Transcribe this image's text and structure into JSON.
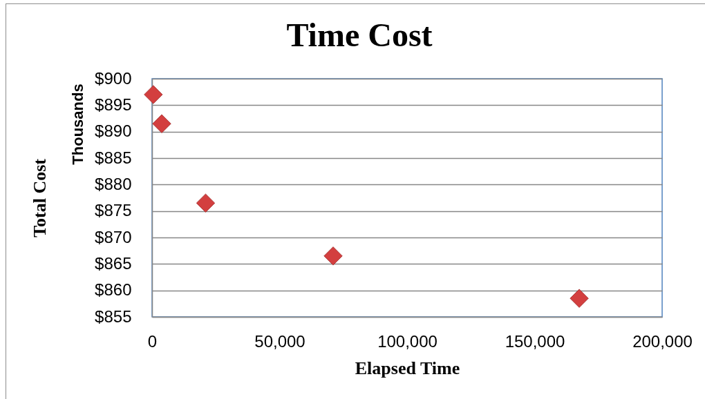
{
  "chart_data": {
    "type": "scatter",
    "title": "Time Cost",
    "xlabel": "Elapsed Time",
    "ylabel": "Total Cost",
    "annotations": [
      "Thousands"
    ],
    "x": [
      500,
      3800,
      21000,
      71000,
      167500
    ],
    "values": [
      897,
      891.5,
      876.5,
      866.5,
      858.5
    ],
    "color": "#d33f3f",
    "xlim": [
      0,
      200000
    ],
    "xticks": [
      {
        "value": 0,
        "label": "0"
      },
      {
        "value": 50000,
        "label": "50,000"
      },
      {
        "value": 100000,
        "label": "100,000"
      },
      {
        "value": 150000,
        "label": "150,000"
      },
      {
        "value": 200000,
        "label": "200,000"
      }
    ],
    "ylim": [
      855,
      900
    ],
    "yticks": [
      {
        "value": 855,
        "label": "$855"
      },
      {
        "value": 860,
        "label": "$860"
      },
      {
        "value": 865,
        "label": "$865"
      },
      {
        "value": 870,
        "label": "$870"
      },
      {
        "value": 875,
        "label": "$875"
      },
      {
        "value": 880,
        "label": "$880"
      },
      {
        "value": 885,
        "label": "$885"
      },
      {
        "value": 890,
        "label": "$890"
      },
      {
        "value": 895,
        "label": "$895"
      },
      {
        "value": 900,
        "label": "$900"
      }
    ],
    "grid": "y",
    "marker": "diamond"
  }
}
